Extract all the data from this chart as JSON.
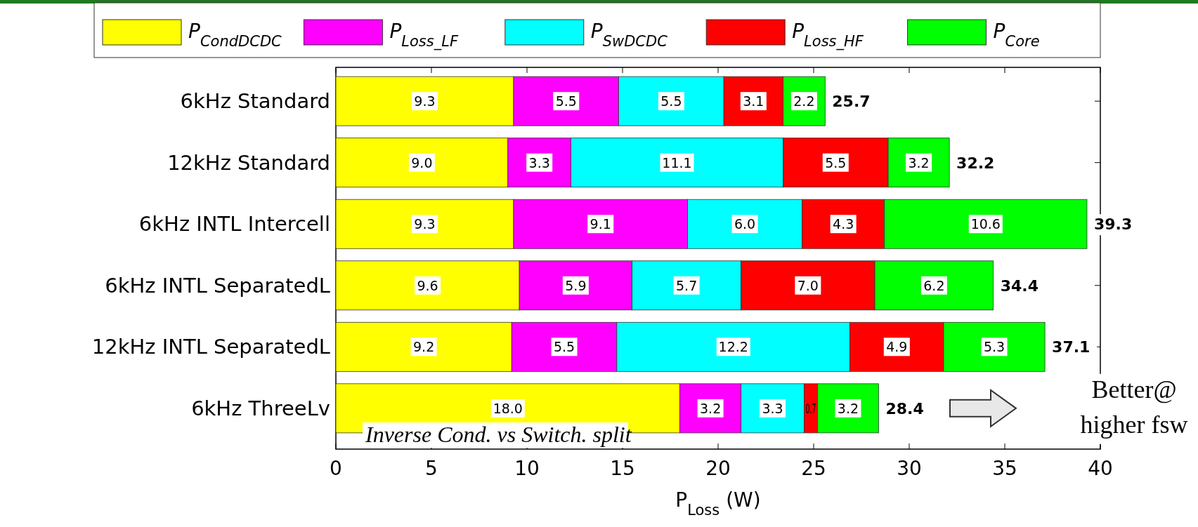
{
  "chart_data": {
    "type": "bar",
    "orientation": "horizontal",
    "stacked": true,
    "categories": [
      "6kHz Standard",
      "12kHz Standard",
      "6kHz INTL Intercell",
      "6kHz INTL SeparatedL",
      "12kHz INTL SeparatedL",
      "6kHz ThreeLv"
    ],
    "series": [
      {
        "name": "P$_{CondDCDC}$",
        "color": "#ffff00",
        "values": [
          9.3,
          9.0,
          9.3,
          9.6,
          9.2,
          18.0
        ],
        "value_labels": [
          "9.3",
          "9.0",
          "9.3",
          "9.6",
          "9.2",
          "18.0"
        ]
      },
      {
        "name": "P$_{Loss_LF}$",
        "color": "#ff00ff",
        "values": [
          5.5,
          3.3,
          9.1,
          5.9,
          5.5,
          3.2
        ],
        "value_labels": [
          "5.5",
          "3.3",
          "9.1",
          "5.9",
          "5.5",
          "3.2"
        ]
      },
      {
        "name": "P$_{SwDCDC}$",
        "color": "#00ffff",
        "values": [
          5.5,
          11.1,
          6.0,
          5.7,
          12.2,
          3.3
        ],
        "value_labels": [
          "5.5",
          "11.1",
          "6.0",
          "5.7",
          "12.2",
          "3.3"
        ]
      },
      {
        "name": "P$_{Loss_HF}$",
        "color": "#ff0000",
        "values": [
          3.1,
          5.5,
          4.3,
          7.0,
          4.9,
          0.7
        ],
        "value_labels": [
          "3.1",
          "5.5",
          "4.3",
          "7.0",
          "4.9",
          "0.7"
        ]
      },
      {
        "name": "P$_{Core}$",
        "color": "#00ff00",
        "values": [
          2.2,
          3.2,
          10.6,
          6.2,
          5.3,
          3.2
        ],
        "value_labels": [
          "2.2",
          "3.2",
          "10.6",
          "6.2",
          "5.3",
          "3.2"
        ]
      }
    ],
    "totals": [
      "25.7",
      "32.2",
      "39.3",
      "34.4",
      "37.1",
      "28.4"
    ],
    "xlim": [
      0,
      40
    ],
    "xticks": [
      0,
      5,
      10,
      15,
      20,
      25,
      30,
      35,
      40
    ],
    "xlabel": "P$_{Loss}$ (W)",
    "legend": "top",
    "annotations": [
      "Inverse Cond. vs Switch. split",
      "Better@ higher fsw"
    ]
  }
}
